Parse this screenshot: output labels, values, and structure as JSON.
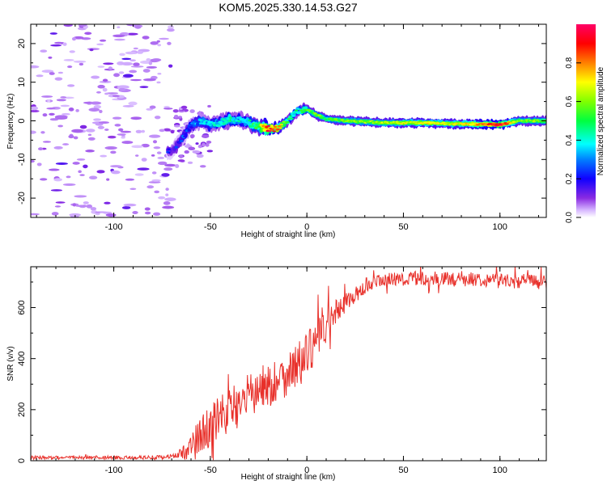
{
  "title": "KOM5.2025.330.14.53.G27",
  "chart_data": [
    {
      "type": "heatmap",
      "name": "spectrogram",
      "xlabel": "Height of straight line (km)",
      "ylabel": "Frequency (Hz)",
      "xlim": [
        -143,
        124
      ],
      "ylim": [
        -25,
        25
      ],
      "xticks": [
        -100,
        -50,
        0,
        50,
        100
      ],
      "yticks": [
        -20,
        -10,
        0,
        10,
        20
      ],
      "xtick_labels": [
        "-100",
        "-50",
        "0",
        "50",
        "100"
      ],
      "ytick_labels": [
        "-20",
        "-10",
        "0",
        "10",
        "20"
      ],
      "ridge_x": [
        -70,
        -65,
        -60,
        -55,
        -50,
        -45,
        -40,
        -35,
        -30,
        -25,
        -20,
        -15,
        -10,
        -5,
        0,
        5,
        10,
        20,
        40,
        60,
        80,
        100,
        110,
        124
      ],
      "ridge_y": [
        -8,
        -5,
        -1,
        0,
        -1,
        -0.5,
        0.5,
        0.2,
        -0.5,
        -1.5,
        -2,
        -2,
        0,
        2.5,
        3,
        1.5,
        0.5,
        0,
        -0.5,
        -0.5,
        -0.8,
        -1,
        0,
        0
      ],
      "ridge_amplitude": [
        0.1,
        0.15,
        0.2,
        0.25,
        0.3,
        0.3,
        0.35,
        0.3,
        0.35,
        0.45,
        0.85,
        0.7,
        0.4,
        0.35,
        0.45,
        0.5,
        0.45,
        0.5,
        0.55,
        0.6,
        0.6,
        0.85,
        0.5,
        0.5
      ],
      "noise_region_xlim": [
        -143,
        -70
      ],
      "colorbar": {
        "label": "Normalized spectral amplitude",
        "range": [
          0,
          1
        ],
        "ticks": [
          0.0,
          0.2,
          0.4,
          0.6,
          0.8
        ],
        "tick_labels": [
          "0.0",
          "0.2",
          "0.4",
          "0.6",
          "0.8"
        ]
      }
    },
    {
      "type": "line",
      "name": "snr",
      "xlabel": "Height of straight line (km)",
      "ylabel": "SNR (v/v)",
      "xlim": [
        -143,
        124
      ],
      "ylim": [
        0,
        760
      ],
      "xticks": [
        -100,
        -50,
        0,
        50,
        100
      ],
      "yticks": [
        0,
        200,
        400,
        600
      ],
      "xtick_labels": [
        "-100",
        "-50",
        "0",
        "50",
        "100"
      ],
      "ytick_labels": [
        "0",
        "200",
        "400",
        "600"
      ],
      "series": [
        {
          "name": "SNR",
          "color": "#e8302a",
          "x": [
            -143,
            -130,
            -110,
            -90,
            -75,
            -67,
            -62,
            -55,
            -50,
            -45,
            -40,
            -35,
            -30,
            -25,
            -20,
            -15,
            -10,
            -5,
            0,
            5,
            10,
            15,
            20,
            25,
            30,
            35,
            40,
            45,
            50,
            60,
            70,
            80,
            90,
            100,
            110,
            124
          ],
          "y": [
            12,
            12,
            12,
            12,
            14,
            20,
            45,
            100,
            140,
            165,
            200,
            225,
            250,
            275,
            295,
            315,
            345,
            370,
            410,
            470,
            530,
            580,
            620,
            650,
            675,
            695,
            705,
            712,
            712,
            715,
            712,
            710,
            712,
            705,
            705,
            700
          ],
          "noise_amplitude": [
            7,
            7,
            7,
            7,
            7,
            12,
            40,
            70,
            85,
            90,
            95,
            95,
            95,
            95,
            90,
            85,
            90,
            95,
            90,
            80,
            70,
            50,
            40,
            30,
            28,
            28,
            28,
            28,
            28,
            28,
            28,
            28,
            28,
            30,
            30,
            30
          ]
        }
      ]
    }
  ]
}
